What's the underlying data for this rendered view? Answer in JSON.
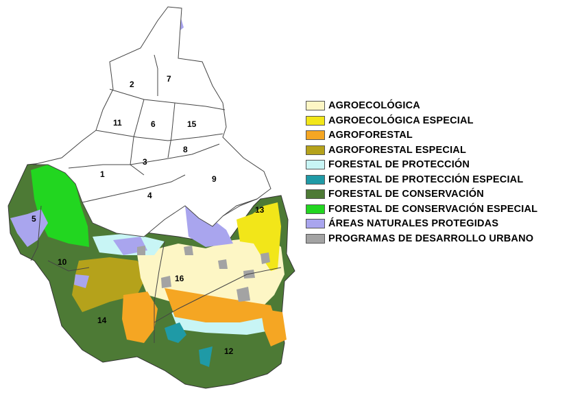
{
  "map": {
    "districts": [
      {
        "id": "1",
        "label": "1"
      },
      {
        "id": "2",
        "label": "2"
      },
      {
        "id": "3",
        "label": "3"
      },
      {
        "id": "4",
        "label": "4"
      },
      {
        "id": "5",
        "label": "5"
      },
      {
        "id": "6",
        "label": "6"
      },
      {
        "id": "7",
        "label": "7"
      },
      {
        "id": "8",
        "label": "8"
      },
      {
        "id": "9",
        "label": "9"
      },
      {
        "id": "10",
        "label": "10"
      },
      {
        "id": "11",
        "label": "11"
      },
      {
        "id": "12",
        "label": "12"
      },
      {
        "id": "13",
        "label": "13"
      },
      {
        "id": "14",
        "label": "14"
      },
      {
        "id": "15",
        "label": "15"
      },
      {
        "id": "16",
        "label": "16"
      }
    ]
  },
  "legend": {
    "items": [
      {
        "label": "AGROECOLÓGICA",
        "color": "#fdf6c5"
      },
      {
        "label": "AGROECOLÓGICA ESPECIAL",
        "color": "#f2e619"
      },
      {
        "label": "AGROFORESTAL",
        "color": "#f5a623"
      },
      {
        "label": "AGROFORESTAL ESPECIAL",
        "color": "#b5a21b"
      },
      {
        "label": "FORESTAL DE PROTECCIÓN",
        "color": "#c8f5f5"
      },
      {
        "label": "FORESTAL DE PROTECCIÓN ESPECIAL",
        "color": "#1f9aa6"
      },
      {
        "label": "FORESTAL DE CONSERVACIÓN",
        "color": "#4d7a35"
      },
      {
        "label": "FORESTAL DE CONSERVACIÓN ESPECIAL",
        "color": "#22d620"
      },
      {
        "label": "ÁREAS NATURALES PROTEGIDAS",
        "color": "#a9a5ee"
      },
      {
        "label": "PROGRAMAS DE DESARROLLO URBANO",
        "color": "#a3a3a3"
      }
    ]
  }
}
